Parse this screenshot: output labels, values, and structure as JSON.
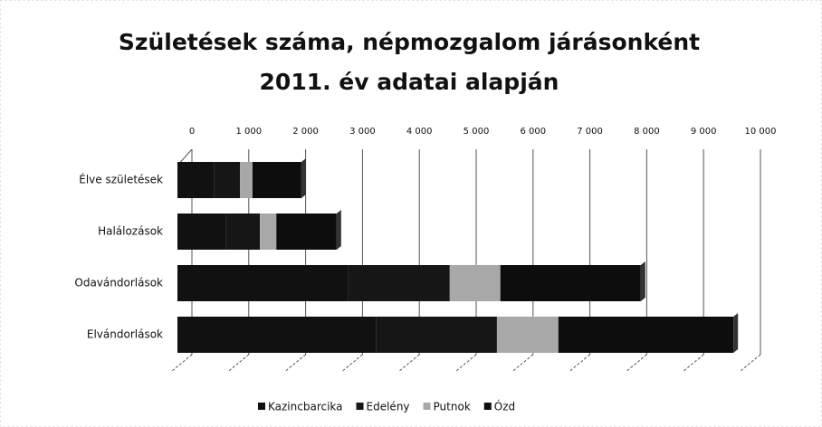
{
  "chart_data": {
    "type": "bar",
    "orientation": "horizontal",
    "stacked": true,
    "title": "Születések száma, népmozgalom járásonként",
    "subtitle": "2011. év adatai alapján",
    "categories": [
      "Élve születések",
      "Halálozások",
      "Odavándorlások",
      "Elvándorlások"
    ],
    "series": [
      {
        "name": "Kazincbarcika",
        "color": "#111111",
        "values": [
          650,
          850,
          3000,
          3500
        ]
      },
      {
        "name": "Edelény",
        "color": "#161616",
        "values": [
          450,
          600,
          1790,
          2120
        ]
      },
      {
        "name": "Putnok",
        "color": "#a8a8a8",
        "values": [
          220,
          290,
          890,
          1080
        ]
      },
      {
        "name": "Ózd",
        "color": "#0d0d0d",
        "values": [
          860,
          1060,
          2470,
          3080
        ]
      }
    ],
    "xlim": [
      0,
      10000
    ],
    "xticks": [
      0,
      {
        "value": 1000,
        "label": "1 000"
      },
      {
        "value": 2000,
        "label": "2 000"
      },
      {
        "value": 3000,
        "label": "3 000"
      },
      {
        "value": 4000,
        "label": "4 000"
      },
      {
        "value": 5000,
        "label": "5 000"
      },
      {
        "value": 6000,
        "label": "6 000"
      },
      {
        "value": 7000,
        "label": "7 000"
      },
      {
        "value": 8000,
        "label": "8 000"
      },
      {
        "value": 9000,
        "label": "9 000"
      },
      {
        "value": 10000,
        "label": "10 000"
      }
    ],
    "grid": true,
    "legend": "bottom"
  }
}
